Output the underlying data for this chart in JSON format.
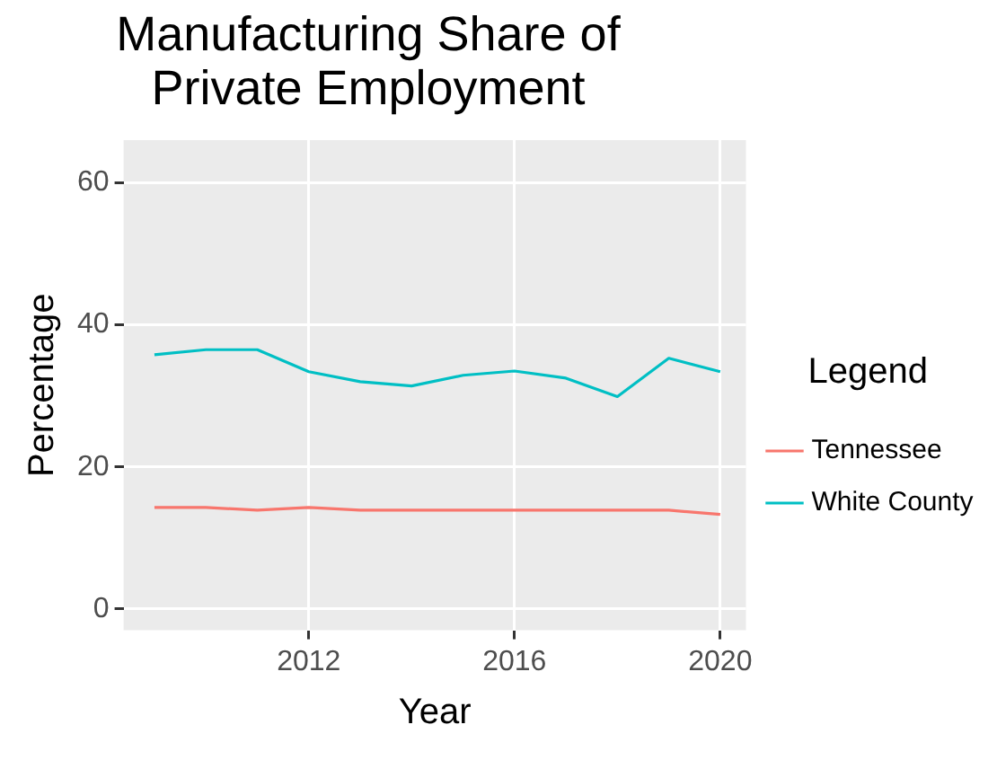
{
  "chart_data": {
    "type": "line",
    "title": "Manufacturing Share of\nPrivate Employment",
    "xlabel": "Year",
    "ylabel": "Percentage",
    "legend_title": "Legend",
    "x": [
      2009,
      2010,
      2011,
      2012,
      2013,
      2014,
      2015,
      2016,
      2017,
      2018,
      2019,
      2020
    ],
    "series": [
      {
        "name": "Tennessee",
        "color": "#f8766d",
        "values": [
          14.3,
          14.3,
          13.9,
          14.3,
          13.9,
          13.9,
          13.9,
          13.9,
          13.9,
          13.9,
          13.9,
          13.3
        ]
      },
      {
        "name": "White County",
        "color": "#00bfc4",
        "values": [
          35.8,
          36.5,
          36.5,
          33.4,
          32.0,
          31.4,
          32.9,
          33.5,
          32.5,
          29.9,
          35.3,
          33.4
        ]
      }
    ],
    "xlim": [
      2008.4,
      2020.5
    ],
    "xticks": [
      2012,
      2016,
      2020
    ],
    "ylim": [
      -3,
      66
    ],
    "yticks": [
      0,
      20,
      40,
      60
    ],
    "grid": true,
    "legend": "right",
    "marker": "none",
    "line_style": "solid"
  }
}
